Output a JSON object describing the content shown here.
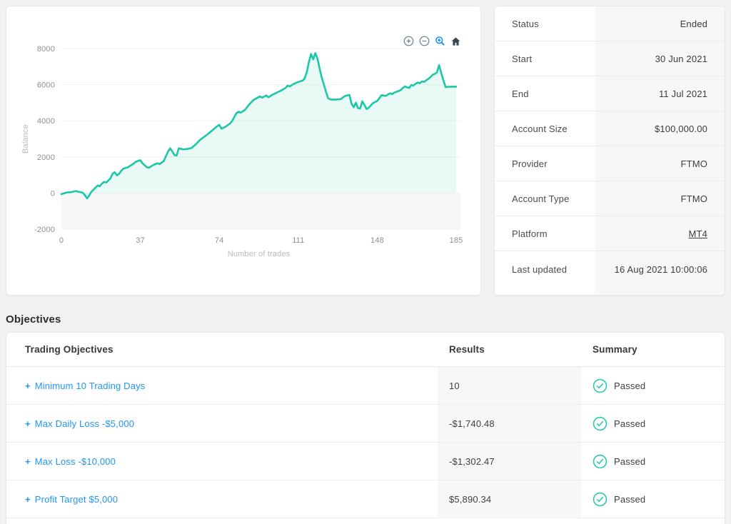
{
  "colors": {
    "line": "#1cc7a6",
    "fill": "rgba(28,199,166,0.10)",
    "band_below_zero": "#f7f7f8",
    "gridline": "#f0f0f1",
    "tick_label": "#8f8f8f",
    "axis_title": "#b9b9b9",
    "toolbar_icon": "#6e8192",
    "toolbar_active": "#008FFB",
    "home_icon": "#37474f",
    "link_blue": "#2196f3",
    "passed_teal": "#2cc7b2"
  },
  "chart_card": {
    "toolbar": [
      {
        "name": "zoom-in"
      },
      {
        "name": "zoom-out"
      },
      {
        "name": "selection-zoom",
        "active": true
      },
      {
        "name": "reset-home"
      }
    ]
  },
  "chart_data": {
    "type": "area",
    "title": "",
    "xlabel": "Number of trades",
    "ylabel": "Balance",
    "xlim": [
      0,
      185
    ],
    "ylim": [
      -2000,
      8000
    ],
    "x_ticks": [
      0,
      37,
      74,
      111,
      148,
      185
    ],
    "y_ticks": [
      -2000,
      0,
      2000,
      4000,
      6000,
      8000
    ],
    "grid": "horizontal",
    "legend": "none",
    "series": [
      {
        "name": "Balance",
        "points": [
          [
            0,
            -60
          ],
          [
            2,
            10
          ],
          [
            3,
            40
          ],
          [
            5,
            60
          ],
          [
            6,
            90
          ],
          [
            7,
            110
          ],
          [
            8,
            70
          ],
          [
            10,
            20
          ],
          [
            11,
            -120
          ],
          [
            12,
            -300
          ],
          [
            13,
            -150
          ],
          [
            14,
            60
          ],
          [
            15,
            180
          ],
          [
            16,
            300
          ],
          [
            17,
            420
          ],
          [
            18,
            380
          ],
          [
            19,
            520
          ],
          [
            20,
            620
          ],
          [
            21,
            580
          ],
          [
            22,
            700
          ],
          [
            23,
            820
          ],
          [
            24,
            1080
          ],
          [
            25,
            1150
          ],
          [
            26,
            980
          ],
          [
            27,
            1060
          ],
          [
            28,
            1220
          ],
          [
            29,
            1350
          ],
          [
            31,
            1420
          ],
          [
            33,
            1560
          ],
          [
            35,
            1740
          ],
          [
            37,
            1820
          ],
          [
            38,
            1650
          ],
          [
            40,
            1430
          ],
          [
            41,
            1400
          ],
          [
            43,
            1550
          ],
          [
            45,
            1650
          ],
          [
            46,
            1600
          ],
          [
            48,
            1780
          ],
          [
            49,
            2050
          ],
          [
            50,
            2300
          ],
          [
            51,
            2480
          ],
          [
            52,
            2300
          ],
          [
            53,
            2100
          ],
          [
            54,
            2080
          ],
          [
            55,
            2480
          ],
          [
            57,
            2420
          ],
          [
            59,
            2440
          ],
          [
            61,
            2500
          ],
          [
            63,
            2700
          ],
          [
            65,
            2950
          ],
          [
            67,
            3120
          ],
          [
            69,
            3300
          ],
          [
            71,
            3500
          ],
          [
            73,
            3700
          ],
          [
            74,
            3780
          ],
          [
            75,
            3560
          ],
          [
            77,
            3680
          ],
          [
            79,
            3850
          ],
          [
            80,
            3980
          ],
          [
            81,
            4200
          ],
          [
            82,
            4420
          ],
          [
            83,
            4500
          ],
          [
            84,
            4450
          ],
          [
            86,
            4600
          ],
          [
            88,
            4900
          ],
          [
            90,
            5150
          ],
          [
            92,
            5280
          ],
          [
            93,
            5350
          ],
          [
            94,
            5280
          ],
          [
            96,
            5400
          ],
          [
            97,
            5300
          ],
          [
            99,
            5450
          ],
          [
            101,
            5560
          ],
          [
            103,
            5680
          ],
          [
            105,
            5820
          ],
          [
            106,
            5950
          ],
          [
            107,
            5900
          ],
          [
            109,
            6050
          ],
          [
            111,
            6150
          ],
          [
            113,
            6220
          ],
          [
            114,
            6350
          ],
          [
            115,
            6700
          ],
          [
            116,
            7250
          ],
          [
            117,
            7700
          ],
          [
            118,
            7400
          ],
          [
            119,
            7750
          ],
          [
            120,
            7450
          ],
          [
            121,
            6900
          ],
          [
            122,
            6400
          ],
          [
            123,
            6000
          ],
          [
            124,
            5600
          ],
          [
            125,
            5250
          ],
          [
            126,
            5180
          ],
          [
            128,
            5170
          ],
          [
            130,
            5190
          ],
          [
            131,
            5200
          ],
          [
            132,
            5300
          ],
          [
            133,
            5380
          ],
          [
            135,
            5430
          ],
          [
            136,
            4950
          ],
          [
            137,
            4750
          ],
          [
            138,
            5000
          ],
          [
            139,
            4700
          ],
          [
            140,
            4680
          ],
          [
            141,
            5080
          ],
          [
            142,
            4880
          ],
          [
            143,
            4650
          ],
          [
            144,
            4720
          ],
          [
            145,
            4850
          ],
          [
            146,
            4980
          ],
          [
            148,
            5100
          ],
          [
            149,
            5250
          ],
          [
            150,
            5420
          ],
          [
            152,
            5380
          ],
          [
            153,
            5450
          ],
          [
            154,
            5520
          ],
          [
            155,
            5480
          ],
          [
            156,
            5560
          ],
          [
            158,
            5650
          ],
          [
            159,
            5700
          ],
          [
            160,
            5820
          ],
          [
            161,
            5900
          ],
          [
            162,
            5850
          ],
          [
            163,
            5820
          ],
          [
            164,
            5980
          ],
          [
            165,
            5950
          ],
          [
            166,
            6050
          ],
          [
            167,
            6120
          ],
          [
            168,
            6080
          ],
          [
            169,
            6180
          ],
          [
            170,
            6150
          ],
          [
            171,
            6250
          ],
          [
            172,
            6320
          ],
          [
            173,
            6420
          ],
          [
            174,
            6550
          ],
          [
            175,
            6600
          ],
          [
            176,
            6680
          ],
          [
            177,
            7080
          ],
          [
            178,
            6650
          ],
          [
            179,
            6250
          ],
          [
            180,
            5870
          ],
          [
            182,
            5880
          ],
          [
            185,
            5890.34
          ]
        ]
      }
    ]
  },
  "account_details": {
    "rows": [
      {
        "label": "Status",
        "value": "Ended"
      },
      {
        "label": "Start",
        "value": "30 Jun 2021"
      },
      {
        "label": "End",
        "value": "11 Jul 2021"
      },
      {
        "label": "Account Size",
        "value": "$100,000.00"
      },
      {
        "label": "Provider",
        "value": "FTMO"
      },
      {
        "label": "Account Type",
        "value": "FTMO"
      },
      {
        "label": "Platform",
        "value": "MT4"
      },
      {
        "label": "Last updated",
        "value": "16 Aug 2021 10:00:06"
      }
    ]
  },
  "objectives": {
    "heading": "Objectives",
    "expand_icon": "+",
    "columns": [
      "Trading Objectives",
      "Results",
      "Summary"
    ],
    "rows": [
      {
        "objective": "Minimum 10 Trading Days",
        "result": "10",
        "summary": "Passed"
      },
      {
        "objective": "Max Daily Loss -$5,000",
        "result": "-$1,740.48",
        "summary": "Passed"
      },
      {
        "objective": "Max Loss -$10,000",
        "result": "-$1,302.47",
        "summary": "Passed"
      },
      {
        "objective": "Profit Target $5,000",
        "result": "$5,890.34",
        "summary": "Passed"
      }
    ]
  }
}
